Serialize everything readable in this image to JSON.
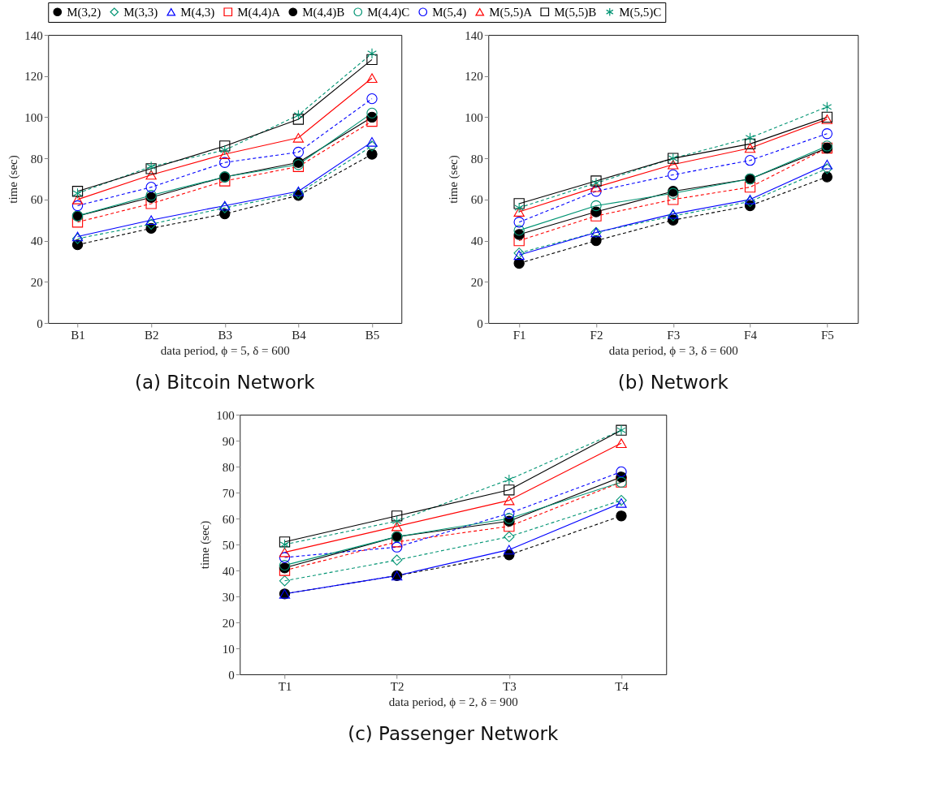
{
  "chart_data": [
    {
      "type": "line",
      "title": "(a) Bitcoin Network",
      "xlabel": "data period, ϕ = 5, δ = 600",
      "ylabel": "time (sec)",
      "categories": [
        "B1",
        "B2",
        "B3",
        "B4",
        "B5"
      ],
      "ylim": [
        0,
        140
      ],
      "yticks": [
        0,
        20,
        40,
        60,
        80,
        100,
        120,
        140
      ],
      "grid": false,
      "legend": "top",
      "series": [
        {
          "name": "M(3,2)",
          "color": "#000000",
          "marker": "circle-filled",
          "line_style": "dashed",
          "values": [
            38,
            46,
            53,
            62,
            82
          ]
        },
        {
          "name": "M(3,3)",
          "color": "#009473",
          "marker": "diamond",
          "line_style": "dashed",
          "values": [
            41,
            48,
            56,
            63,
            86
          ]
        },
        {
          "name": "M(4,3)",
          "color": "#0000ff",
          "marker": "triangle",
          "line_style": "solid",
          "values": [
            42,
            50,
            57,
            64,
            88
          ]
        },
        {
          "name": "M(4,4)A",
          "color": "#ff0000",
          "marker": "square",
          "line_style": "dashed",
          "values": [
            49,
            58,
            69,
            76,
            98
          ]
        },
        {
          "name": "M(4,4)B",
          "color": "#000000",
          "marker": "circle-filled",
          "line_style": "solid",
          "values": [
            52,
            61,
            71,
            78,
            100
          ]
        },
        {
          "name": "M(4,4)C",
          "color": "#009473",
          "marker": "circle",
          "line_style": "solid",
          "values": [
            52,
            62,
            71,
            77,
            102
          ]
        },
        {
          "name": "M(5,4)",
          "color": "#0000ff",
          "marker": "circle",
          "line_style": "dashed",
          "values": [
            57,
            66,
            78,
            83,
            109
          ]
        },
        {
          "name": "M(5,5)A",
          "color": "#ff0000",
          "marker": "triangle",
          "line_style": "solid",
          "values": [
            60,
            72,
            82,
            90,
            119
          ]
        },
        {
          "name": "M(5,5)B",
          "color": "#000000",
          "marker": "square",
          "line_style": "solid",
          "values": [
            64,
            75,
            86,
            99,
            128
          ]
        },
        {
          "name": "M(5,5)C",
          "color": "#009473",
          "marker": "cross",
          "line_style": "dashed",
          "values": [
            63,
            76,
            84,
            101,
            131
          ]
        }
      ]
    },
    {
      "type": "line",
      "title": "(b) Network",
      "xlabel": "data period, ϕ = 3, δ = 600",
      "ylabel": "time (sec)",
      "categories": [
        "F1",
        "F2",
        "F3",
        "F4",
        "F5"
      ],
      "ylim": [
        0,
        140
      ],
      "yticks": [
        0,
        20,
        40,
        60,
        80,
        100,
        120,
        140
      ],
      "grid": false,
      "series": [
        {
          "name": "M(3,2)",
          "color": "#000000",
          "marker": "circle-filled",
          "line_style": "dashed",
          "values": [
            29,
            40,
            50,
            57,
            71
          ]
        },
        {
          "name": "M(3,3)",
          "color": "#009473",
          "marker": "diamond",
          "line_style": "dashed",
          "values": [
            34,
            44,
            52,
            59,
            75
          ]
        },
        {
          "name": "M(4,3)",
          "color": "#0000ff",
          "marker": "triangle",
          "line_style": "solid",
          "values": [
            33,
            44,
            53,
            60,
            77
          ]
        },
        {
          "name": "M(4,4)A",
          "color": "#ff0000",
          "marker": "square",
          "line_style": "dashed",
          "values": [
            40,
            52,
            60,
            66,
            85
          ]
        },
        {
          "name": "M(4,4)B",
          "color": "#000000",
          "marker": "circle-filled",
          "line_style": "solid",
          "values": [
            43,
            54,
            64,
            70,
            85
          ]
        },
        {
          "name": "M(4,4)C",
          "color": "#009473",
          "marker": "circle",
          "line_style": "solid",
          "values": [
            45,
            57,
            63,
            70,
            86
          ]
        },
        {
          "name": "M(5,4)",
          "color": "#0000ff",
          "marker": "circle",
          "line_style": "dashed",
          "values": [
            49,
            64,
            72,
            79,
            92
          ]
        },
        {
          "name": "M(5,5)A",
          "color": "#ff0000",
          "marker": "triangle",
          "line_style": "solid",
          "values": [
            54,
            66,
            77,
            85,
            99
          ]
        },
        {
          "name": "M(5,5)B",
          "color": "#000000",
          "marker": "square",
          "line_style": "solid",
          "values": [
            58,
            69,
            80,
            87,
            100
          ]
        },
        {
          "name": "M(5,5)C",
          "color": "#009473",
          "marker": "cross",
          "line_style": "dashed",
          "values": [
            56,
            68,
            80,
            90,
            105
          ]
        }
      ]
    },
    {
      "type": "line",
      "title": "(c) Passenger Network",
      "xlabel": "data period, ϕ = 2, δ = 900",
      "ylabel": "time (sec)",
      "categories": [
        "T1",
        "T2",
        "T3",
        "T4"
      ],
      "ylim": [
        0,
        100
      ],
      "yticks": [
        0,
        10,
        20,
        30,
        40,
        50,
        60,
        70,
        80,
        90,
        100
      ],
      "grid": false,
      "series": [
        {
          "name": "M(3,2)",
          "color": "#000000",
          "marker": "circle-filled",
          "line_style": "dashed",
          "values": [
            31,
            38,
            46,
            61
          ]
        },
        {
          "name": "M(3,3)",
          "color": "#009473",
          "marker": "diamond",
          "line_style": "dashed",
          "values": [
            36,
            44,
            53,
            67
          ]
        },
        {
          "name": "M(4,3)",
          "color": "#0000ff",
          "marker": "triangle",
          "line_style": "solid",
          "values": [
            31,
            38,
            48,
            66
          ]
        },
        {
          "name": "M(4,4)A",
          "color": "#ff0000",
          "marker": "square",
          "line_style": "dashed",
          "values": [
            40,
            51,
            57,
            74
          ]
        },
        {
          "name": "M(4,4)B",
          "color": "#000000",
          "marker": "circle-filled",
          "line_style": "solid",
          "values": [
            41,
            53,
            59,
            76
          ]
        },
        {
          "name": "M(4,4)C",
          "color": "#009473",
          "marker": "circle",
          "line_style": "solid",
          "values": [
            42,
            53,
            60,
            74
          ]
        },
        {
          "name": "M(5,4)",
          "color": "#0000ff",
          "marker": "circle",
          "line_style": "dashed",
          "values": [
            45,
            49,
            62,
            78
          ]
        },
        {
          "name": "M(5,5)A",
          "color": "#ff0000",
          "marker": "triangle",
          "line_style": "solid",
          "values": [
            47,
            57,
            67,
            89
          ]
        },
        {
          "name": "M(5,5)B",
          "color": "#000000",
          "marker": "square",
          "line_style": "solid",
          "values": [
            51,
            61,
            71,
            94
          ]
        },
        {
          "name": "M(5,5)C",
          "color": "#009473",
          "marker": "cross",
          "line_style": "dashed",
          "values": [
            50,
            59,
            75,
            94
          ]
        }
      ]
    }
  ]
}
